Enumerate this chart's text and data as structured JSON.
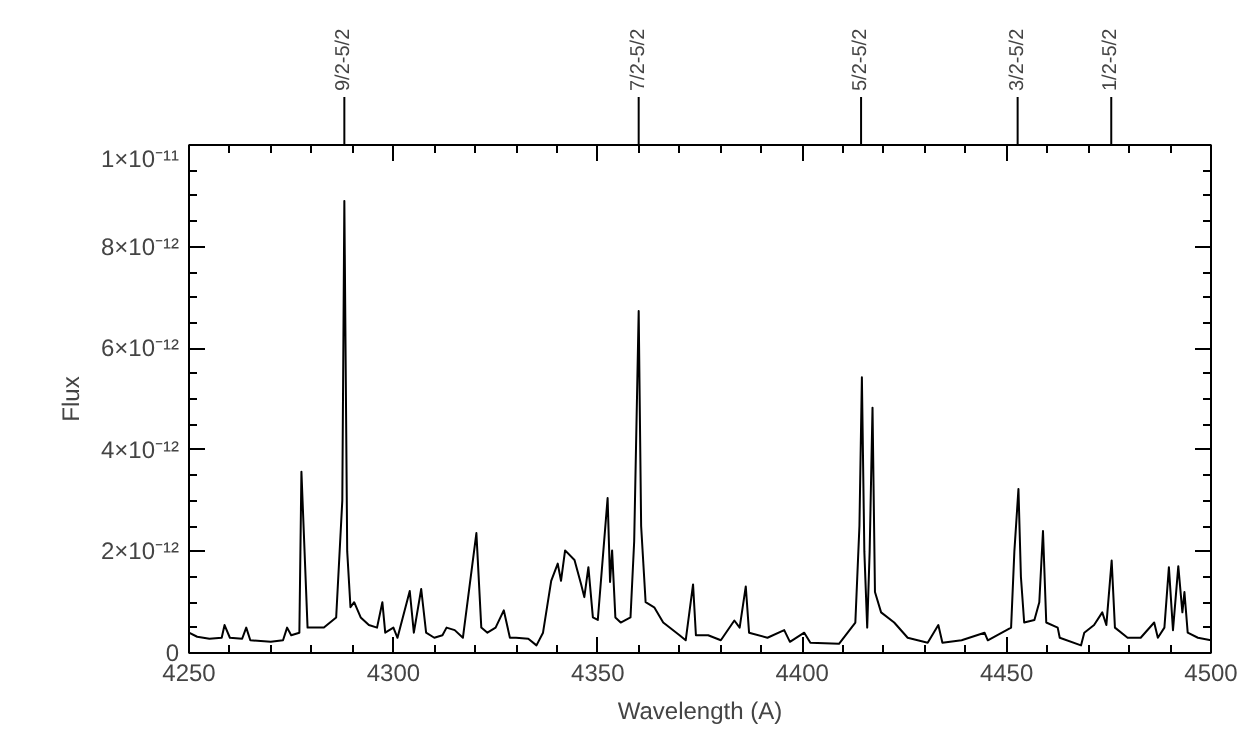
{
  "chart_data": {
    "type": "line",
    "xlabel": "Wavelength (A)",
    "ylabel": "Flux",
    "x": [
      4250,
      4252,
      4255,
      4258,
      4258.7,
      4260,
      4263,
      4264,
      4265,
      4270,
      4273,
      4274,
      4275,
      4277,
      4277.5,
      4279,
      4283,
      4286,
      4287.5,
      4288,
      4288.7,
      4289.5,
      4290.4,
      4292,
      4294,
      4296,
      4297.3,
      4298,
      4300,
      4301,
      4304,
      4305,
      4306.8,
      4308,
      4310,
      4312,
      4313,
      4315,
      4317,
      4320.3,
      4321.5,
      4323,
      4325,
      4327,
      4328.5,
      4330,
      4333,
      4335,
      4336.6,
      4338.6,
      4340.2,
      4341,
      4342,
      4344.3,
      4345.9,
      4346.7,
      4347.7,
      4348.8,
      4350,
      4352.4,
      4353,
      4353.5,
      4354.3,
      4355.6,
      4358,
      4358.9,
      4360,
      4360.6,
      4361.7,
      4363.8,
      4366,
      4370,
      4371.5,
      4373.3,
      4374,
      4377,
      4380.1,
      4383.4,
      4384.7,
      4386.2,
      4387,
      4391.5,
      4395.6,
      4397,
      4400.5,
      4402,
      4409,
      4413,
      4414,
      4414.6,
      4415.2,
      4415.9,
      4416.5,
      4417.2,
      4417.8,
      4419.3,
      4422.5,
      4425.8,
      4430.7,
      4433.3,
      4434.3,
      4439,
      4444.6,
      4445.4,
      4451.1,
      4451.9,
      4452.9,
      4453.5,
      4454.3,
      4456.8,
      4458,
      4458.9,
      4459.7,
      4462.5,
      4463,
      4468.2,
      4469,
      4471.4,
      4473.4,
      4474.4,
      4475.7,
      4476.5,
      4479.6,
      4482.8,
      4486.1,
      4487,
      4488.6,
      4489.7,
      4490.7,
      4492,
      4493,
      4493.5,
      4494.3,
      4496.8,
      4500
    ],
    "series": [
      {
        "color": "#000000",
        "values": [
          4e-13,
          3.2e-13,
          2.8e-13,
          3e-13,
          5.5e-13,
          3e-13,
          2.8e-13,
          5e-13,
          2.5e-13,
          2.2e-13,
          2.5e-13,
          5e-13,
          3.5e-13,
          4e-13,
          3.57e-12,
          5e-13,
          5e-13,
          7e-13,
          3e-12,
          8.9e-12,
          2e-12,
          9e-13,
          1e-12,
          7e-13,
          5.5e-13,
          5e-13,
          1e-12,
          4e-13,
          5e-13,
          3e-13,
          1.22e-12,
          4e-13,
          1.26e-12,
          4e-13,
          3e-13,
          3.5e-13,
          5e-13,
          4.5e-13,
          3e-13,
          2.36e-12,
          5e-13,
          4e-13,
          5e-13,
          8.4e-13,
          3e-13,
          3e-13,
          2.8e-13,
          1.5e-13,
          4e-13,
          1.42e-12,
          1.76e-12,
          1.42e-12,
          2.02e-12,
          1.83e-12,
          1.36e-12,
          1.1e-12,
          1.69e-12,
          7e-13,
          6.5e-13,
          3.05e-12,
          1.4e-12,
          2.02e-12,
          7e-13,
          6e-13,
          7e-13,
          2.2e-12,
          6.73e-12,
          2.5e-12,
          1e-12,
          9e-13,
          6e-13,
          3.5e-13,
          2.5e-13,
          1.35e-12,
          3.5e-13,
          3.5e-13,
          2.5e-13,
          6.4e-13,
          5e-13,
          1.31e-12,
          4e-13,
          3e-13,
          4.5e-13,
          2.2e-13,
          4e-13,
          2e-13,
          1.8e-13,
          6e-13,
          2.5e-12,
          5.43e-12,
          2e-12,
          5e-13,
          2e-12,
          4.83e-12,
          1.2e-12,
          8e-13,
          6e-13,
          3e-13,
          2e-13,
          5.5e-13,
          2e-13,
          2.5e-13,
          4e-13,
          2.5e-13,
          5e-13,
          2e-12,
          3.23e-12,
          1.5e-12,
          6e-13,
          6.5e-13,
          1e-12,
          2.4e-12,
          6e-13,
          5e-13,
          3e-13,
          1.5e-13,
          4e-13,
          5.5e-13,
          8e-13,
          5.5e-13,
          1.82e-12,
          5e-13,
          3e-13,
          3e-13,
          6e-13,
          3e-13,
          5e-13,
          1.69e-12,
          4.5e-13,
          1.71e-12,
          8e-13,
          1.2e-12,
          4e-13,
          3e-13,
          2.5e-13
        ]
      }
    ],
    "xlim": [
      4250,
      4500
    ],
    "xticks": [
      4250,
      4300,
      4350,
      4400,
      4450,
      4500
    ],
    "ylim": [
      0,
      1e-11
    ],
    "yticks": [
      {
        "value": 0,
        "label": "0"
      },
      {
        "value": 2e-12,
        "label": "2×10⁻¹²"
      },
      {
        "value": 4e-12,
        "label": "4×10⁻¹²"
      },
      {
        "value": 6e-12,
        "label": "6×10⁻¹²"
      },
      {
        "value": 8e-12,
        "label": "8×10⁻¹²"
      },
      {
        "value": 1e-11,
        "label": "1×10⁻¹¹"
      }
    ],
    "annotations": [
      {
        "text": "9/2-5/2",
        "x": 4288
      },
      {
        "text": "7/2-5/2",
        "x": 4360
      },
      {
        "text": "5/2-5/2",
        "x": 4414.4
      },
      {
        "text": "3/2-5/2",
        "x": 4452.7
      },
      {
        "text": "1/2-5/2",
        "x": 4475.6
      }
    ],
    "grid": false,
    "marker": "none",
    "line_style": "solid"
  }
}
